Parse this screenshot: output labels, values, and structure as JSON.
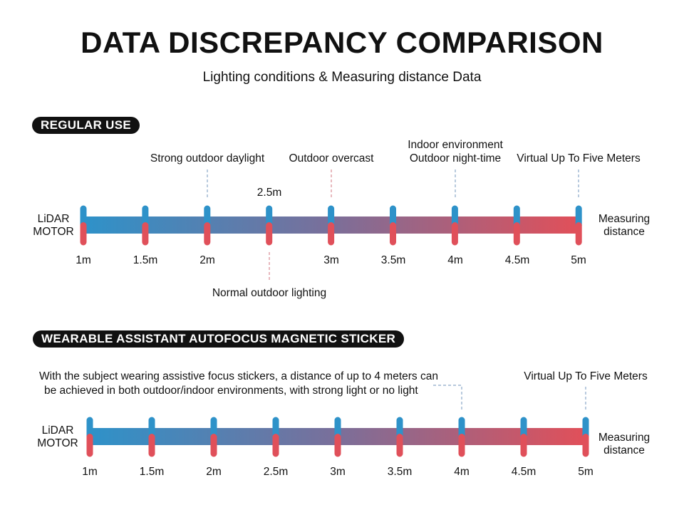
{
  "title": "DATA DISCREPANCY COMPARISON",
  "subtitle": "Lighting conditions & Measuring distance Data",
  "colors": {
    "start": "#2e92c9",
    "end": "#e0505a",
    "pill_bg": "#111111"
  },
  "regular": {
    "section_label": "REGULAR USE",
    "left_label_line1": "LiDAR",
    "left_label_line2": "MOTOR",
    "right_label_line1": "Measuring",
    "right_label_line2": "distance",
    "ticks": [
      "1m",
      "1.5m",
      "2m",
      "2.5m",
      "3m",
      "3.5m",
      "4m",
      "4.5m",
      "5m"
    ],
    "annotations": {
      "strong_daylight": "Strong outdoor daylight",
      "overcast": "Outdoor overcast",
      "indoor": "Indoor environment",
      "night": "Outdoor night-time",
      "virtual": "Virtual Up To Five Meters",
      "normal": "Normal outdoor lighting"
    }
  },
  "wearable": {
    "section_label": "WEARABLE ASSISTANT AUTOFOCUS MAGNETIC STICKER",
    "left_label_line1": "LiDAR",
    "left_label_line2": "MOTOR",
    "right_label_line1": "Measuring",
    "right_label_line2": "distance",
    "ticks": [
      "1m",
      "1.5m",
      "2m",
      "2.5m",
      "3m",
      "3.5m",
      "4m",
      "4.5m",
      "5m"
    ],
    "annotations": {
      "note_line1": "With the subject wearing assistive focus stickers, a distance of up to 4 meters can",
      "note_line2": "be achieved in both outdoor/indoor environments, with strong light or no light",
      "virtual": "Virtual Up To Five Meters"
    }
  }
}
